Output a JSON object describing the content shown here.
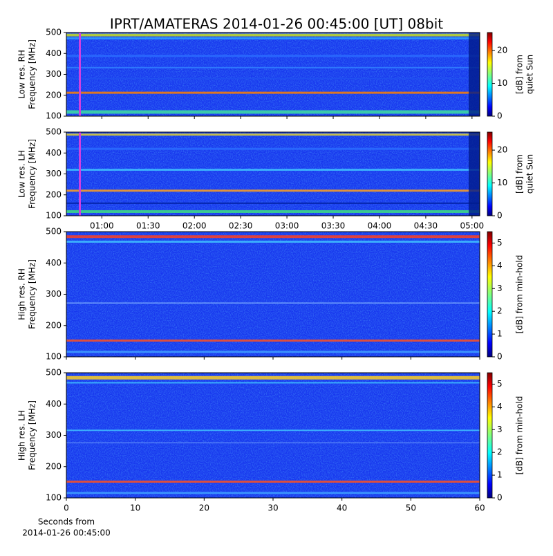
{
  "chart_data": [
    {
      "type": "heatmap",
      "title": "IPRT/AMATERAS 2014-01-26 00:45:00 [UT]   08bit",
      "ylabel": [
        "Low res. RH",
        "Frequency [MHz]"
      ],
      "ylim": [
        100,
        500
      ],
      "yticks": [
        100,
        200,
        300,
        400,
        500
      ],
      "colorbar_label": [
        "[dB] from",
        "quiet Sun"
      ],
      "clim": [
        0,
        25.5
      ],
      "cticks": [
        0,
        10,
        20
      ],
      "colormap": "jet"
    },
    {
      "type": "heatmap",
      "ylabel": [
        "Low res. LH",
        "Frequency [MHz]"
      ],
      "ylim": [
        100,
        500
      ],
      "yticks": [
        100,
        200,
        300,
        400,
        500
      ],
      "xlim": [
        37,
        305
      ],
      "xticks": [
        {
          "value": 60,
          "label": "01:00"
        },
        {
          "value": 90,
          "label": "01:30"
        },
        {
          "value": 120,
          "label": "02:00"
        },
        {
          "value": 150,
          "label": "02:30"
        },
        {
          "value": 180,
          "label": "03:00"
        },
        {
          "value": 210,
          "label": "03:30"
        },
        {
          "value": 240,
          "label": "04:00"
        },
        {
          "value": 270,
          "label": "04:30"
        },
        {
          "value": 300,
          "label": "05:00"
        }
      ],
      "colorbar_label": [
        "[dB] from",
        "quiet Sun"
      ],
      "clim": [
        0,
        25.5
      ],
      "cticks": [
        0,
        10,
        20
      ],
      "colormap": "jet"
    },
    {
      "type": "heatmap",
      "ylabel": [
        "High res. RH",
        "Frequency [MHz]"
      ],
      "ylim": [
        100,
        500
      ],
      "yticks": [
        100,
        200,
        300,
        400,
        500
      ],
      "colorbar_label": [
        "[dB] from min-hold"
      ],
      "clim": [
        0,
        5.5
      ],
      "cticks": [
        0,
        1,
        2,
        3,
        4,
        5
      ],
      "colormap": "jet"
    },
    {
      "type": "heatmap",
      "ylabel": [
        "High res. LH",
        "Frequency [MHz]"
      ],
      "ylim": [
        100,
        500
      ],
      "yticks": [
        100,
        200,
        300,
        400,
        500
      ],
      "xlim": [
        0,
        60
      ],
      "xticks": [
        0,
        10,
        20,
        30,
        40,
        50,
        60
      ],
      "xlabel": [
        "Seconds from",
        "2014-01-26 00:45:00"
      ],
      "colorbar_label": [
        "[dB] from min-hold"
      ],
      "clim": [
        0,
        5.5
      ],
      "cticks": [
        0,
        1,
        2,
        3,
        4,
        5
      ],
      "colormap": "jet"
    }
  ]
}
